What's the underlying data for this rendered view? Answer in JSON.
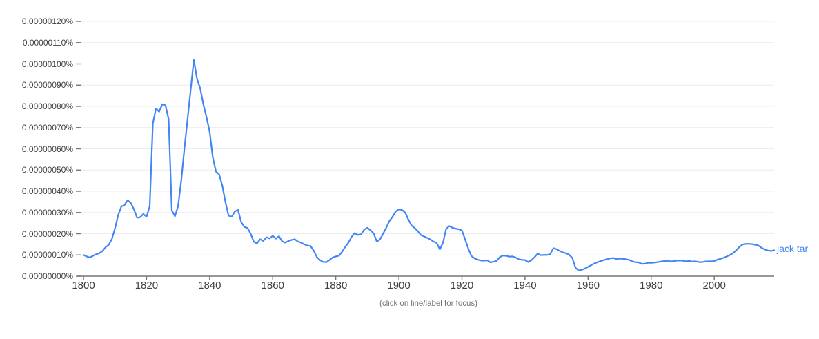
{
  "footer": {
    "hint": "(click on line/label for focus)"
  },
  "colors": {
    "series_blue": "#4285f4",
    "gridline": "#ececec",
    "axis": "#757575",
    "tick_text": "#404040",
    "hint_text": "#757575"
  },
  "chart_data": {
    "type": "line",
    "title": "",
    "xlabel": "",
    "ylabel": "",
    "grid": true,
    "legend_position": "inline-right-of-line-end",
    "x_axis": {
      "range": [
        1800,
        2019
      ],
      "ticks": [
        1800,
        1820,
        1840,
        1860,
        1880,
        1900,
        1920,
        1940,
        1960,
        1980,
        2000
      ]
    },
    "y_axis": {
      "range_value_units": [
        0,
        120
      ],
      "unit_description": "value units are 1e-8 percent (0.00000001%)",
      "tick_step_units": 10,
      "tick_labels": [
        "0.00000000%",
        "0.00000010%",
        "0.00000020%",
        "0.00000030%",
        "0.00000040%",
        "0.00000050%",
        "0.00000060%",
        "0.00000070%",
        "0.00000080%",
        "0.00000090%",
        "0.00000100%",
        "0.00000110%",
        "0.00000120%"
      ]
    },
    "series": [
      {
        "name": "jack tar",
        "color": "#4285f4",
        "start_year": 1800,
        "end_year": 2019,
        "values_1e8_percent": [
          10.0,
          9.3,
          8.8,
          9.6,
          10.3,
          10.8,
          11.8,
          13.6,
          14.8,
          17.5,
          22.5,
          28.7,
          32.8,
          33.5,
          35.8,
          34.5,
          31.5,
          27.5,
          27.8,
          29.3,
          28.0,
          33,
          72,
          79,
          77.5,
          81,
          80.5,
          74,
          31,
          28.2,
          33,
          45,
          60,
          74,
          88,
          101.8,
          93,
          88.5,
          81,
          75,
          68,
          56,
          49.3,
          48,
          42.8,
          35,
          28.5,
          28,
          30.5,
          31.2,
          25.5,
          23.2,
          22.7,
          20,
          16.2,
          15.4,
          17.4,
          16.6,
          18.3,
          17.8,
          19.0,
          17.7,
          18.8,
          16.4,
          15.8,
          16.6,
          17.1,
          17.4,
          16.3,
          15.8,
          15.0,
          14.4,
          14.2,
          12.0,
          9.0,
          7.6,
          6.7,
          6.6,
          7.6,
          8.8,
          9.3,
          9.6,
          11.5,
          13.8,
          15.8,
          18.5,
          20.3,
          19.4,
          19.7,
          21.9,
          22.8,
          21.6,
          20.2,
          16.3,
          17.3,
          20.0,
          22.8,
          26.0,
          28.0,
          30.5,
          31.5,
          31.2,
          30.0,
          26.7,
          24.0,
          22.7,
          21.2,
          19.4,
          18.7,
          18.0,
          17.3,
          16.3,
          15.6,
          12.6,
          15.8,
          22.3,
          23.6,
          22.8,
          22.4,
          22.1,
          21.5,
          17.4,
          13.0,
          9.5,
          8.4,
          7.8,
          7.4,
          7.3,
          7.5,
          6.5,
          6.8,
          7.2,
          9.0,
          9.7,
          9.6,
          9.2,
          9.3,
          8.8,
          8.0,
          7.7,
          7.6,
          6.7,
          7.5,
          8.9,
          10.6,
          9.9,
          10.0,
          10.0,
          10.4,
          13.2,
          12.7,
          11.9,
          11.2,
          10.8,
          10.1,
          8.6,
          4.0,
          2.7,
          3.0,
          3.6,
          4.4,
          5.2,
          6.0,
          6.6,
          7.1,
          7.6,
          8.0,
          8.4,
          8.6,
          8.0,
          8.3,
          8.2,
          8.0,
          7.7,
          7.0,
          6.6,
          6.5,
          5.8,
          5.9,
          6.3,
          6.3,
          6.4,
          6.6,
          6.9,
          7.1,
          7.3,
          7.0,
          7.1,
          7.3,
          7.4,
          7.3,
          7.0,
          7.2,
          6.9,
          7.0,
          6.7,
          6.6,
          6.9,
          7.0,
          7.0,
          7.1,
          7.8,
          8.2,
          8.7,
          9.3,
          10.0,
          10.9,
          12.2,
          13.8,
          14.9,
          15.2,
          15.2,
          15.1,
          14.8,
          14.4,
          13.4,
          12.6,
          12.1,
          11.9,
          12.2
        ]
      }
    ]
  }
}
